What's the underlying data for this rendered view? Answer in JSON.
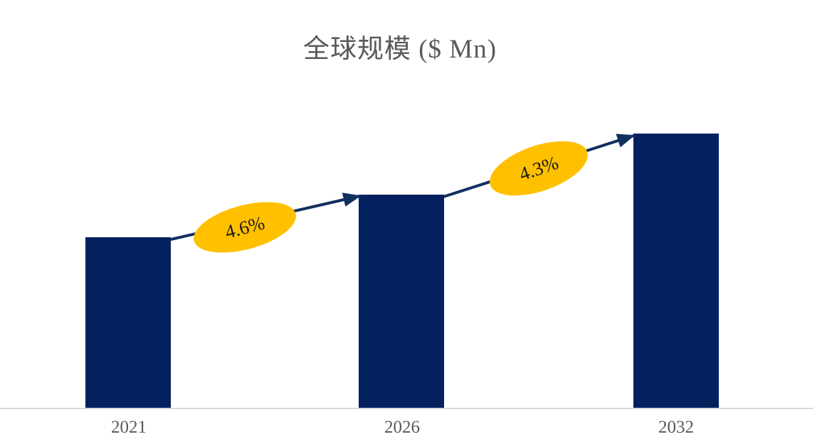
{
  "title": "全球规模 ($ Mn)",
  "chart_data": {
    "type": "bar",
    "title": "全球规模 ($ Mn)",
    "categories": [
      "2021",
      "2026",
      "2032"
    ],
    "values_relative": [
      100,
      125,
      161
    ],
    "values_note": "No value axis, gridlines or data labels are shown; bar heights indexed to 2021 = 100",
    "xlabel": "",
    "ylabel": "",
    "gridlines": false,
    "legend": false,
    "annotations": [
      {
        "label": "4.6%",
        "from": "2021",
        "to": "2026",
        "type": "cagr-arrow-with-ellipse"
      },
      {
        "label": "4.3%",
        "from": "2026",
        "to": "2032",
        "type": "cagr-arrow-with-ellipse"
      }
    ]
  },
  "colors": {
    "bar": "#04215f",
    "arrow": "#10305f",
    "annotation_ellipse": "#ffc000",
    "annotation_text": "#1a1a1a",
    "title_text": "#595959",
    "axis_label_text": "#595959",
    "axis_line": "#d9d9d9",
    "background": "#ffffff"
  }
}
